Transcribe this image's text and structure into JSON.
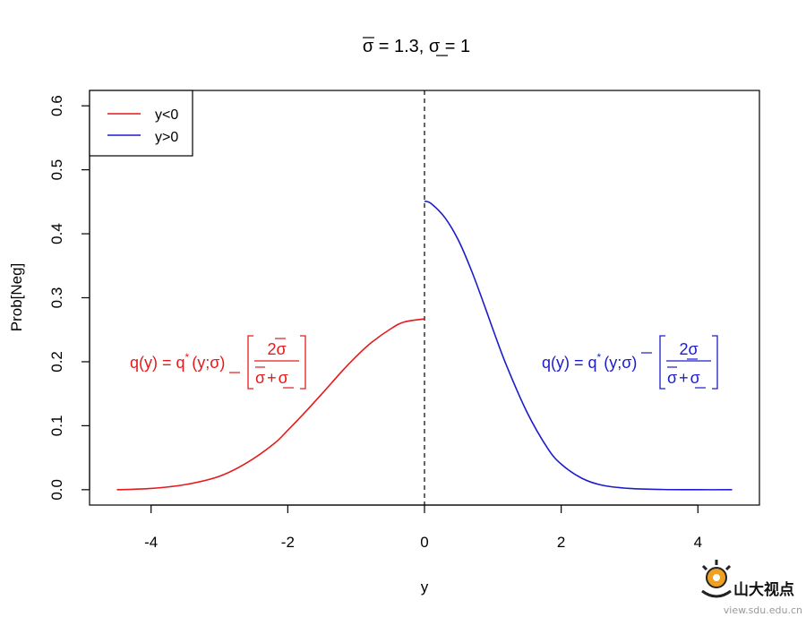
{
  "chart_data": {
    "type": "line",
    "title": {
      "part1": "σ",
      "part2": " = 1.3, ",
      "part3": "σ",
      "part4": " = 1"
    },
    "xlabel": "y",
    "ylabel": "Prob[Neg]",
    "xlim": [
      -4.9,
      4.9
    ],
    "ylim": [
      -0.024,
      0.624
    ],
    "xticks": [
      -4,
      -2,
      0,
      2,
      4
    ],
    "xtick_labels": [
      "-4",
      "-2",
      "0",
      "2",
      "4"
    ],
    "yticks": [
      0.0,
      0.1,
      0.2,
      0.3,
      0.4,
      0.5,
      0.6
    ],
    "ytick_labels": [
      "0.0",
      "0.1",
      "0.2",
      "0.3",
      "0.4",
      "0.5",
      "0.6"
    ],
    "grid": false,
    "legend_position": "top-left",
    "vline_x": 0,
    "series": [
      {
        "name": "y<0",
        "color": "#e41a1c",
        "x": [
          -4.5,
          -4.0,
          -3.5,
          -3.0,
          -2.6,
          -2.2,
          -2.0,
          -1.8,
          -1.5,
          -1.2,
          -1.0,
          -0.8,
          -0.5,
          -0.3,
          0.0
        ],
        "y": [
          0.0,
          0.002,
          0.008,
          0.021,
          0.042,
          0.072,
          0.093,
          0.115,
          0.15,
          0.186,
          0.208,
          0.228,
          0.251,
          0.262,
          0.267
        ]
      },
      {
        "name": "y>0",
        "color": "#1c1ccd",
        "x": [
          0.0,
          0.1,
          0.3,
          0.5,
          0.7,
          0.9,
          1.0,
          1.2,
          1.5,
          1.8,
          2.0,
          2.3,
          2.6,
          3.0,
          3.5,
          4.0,
          4.5
        ],
        "y": [
          0.451,
          0.447,
          0.425,
          0.389,
          0.339,
          0.281,
          0.251,
          0.194,
          0.121,
          0.065,
          0.04,
          0.018,
          0.007,
          0.002,
          0.0003,
          0.0,
          0.0
        ]
      }
    ],
    "annotations": [
      {
        "color": "#e41a1c",
        "lhs": "q(y) = q",
        "star": "*",
        "args": "(y;",
        "arg_sigma": "σ",
        "close": ")",
        "numerator": "2σ",
        "den_left": "σ",
        "den_plus": "+",
        "den_right": "σ"
      },
      {
        "color": "#1c1ccd",
        "lhs": "q(y) = q",
        "star": "*",
        "args": "(y;",
        "arg_sigma": "σ",
        "close": ")",
        "numerator": "2σ",
        "den_left": "σ",
        "den_plus": "+",
        "den_right": "σ"
      }
    ]
  },
  "watermark": {
    "chinese": "山大视点",
    "url": "view.sdu.edu.cn"
  }
}
